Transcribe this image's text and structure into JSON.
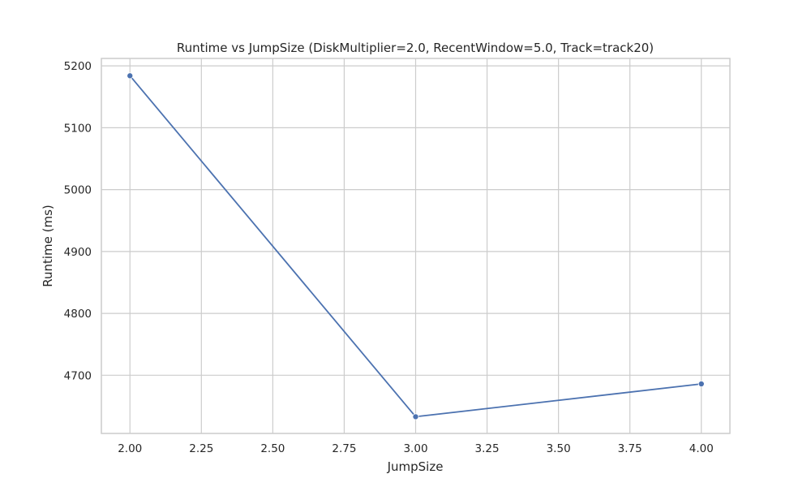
{
  "chart_data": {
    "type": "line",
    "title": "Runtime vs JumpSize (DiskMultiplier=2.0, RecentWindow=5.0, Track=track20)",
    "xlabel": "JumpSize",
    "ylabel": "Runtime (ms)",
    "x": [
      2.0,
      3.0,
      4.0
    ],
    "series": [
      {
        "values": [
          5184,
          4633,
          4686
        ]
      }
    ],
    "xlim": [
      1.9,
      4.1
    ],
    "ylim": [
      4606,
      5212
    ],
    "xticks": [
      2.0,
      2.25,
      2.5,
      2.75,
      3.0,
      3.25,
      3.5,
      3.75,
      4.0
    ],
    "xtick_labels": [
      "2.00",
      "2.25",
      "2.50",
      "2.75",
      "3.00",
      "3.25",
      "3.50",
      "3.75",
      "4.00"
    ],
    "yticks": [
      4700,
      4800,
      4900,
      5000,
      5100,
      5200
    ],
    "ytick_labels": [
      "4700",
      "4800",
      "4900",
      "5000",
      "5100",
      "5200"
    ],
    "grid": true,
    "colors": {
      "line": "#4c72b0",
      "grid": "#cccccc"
    }
  }
}
